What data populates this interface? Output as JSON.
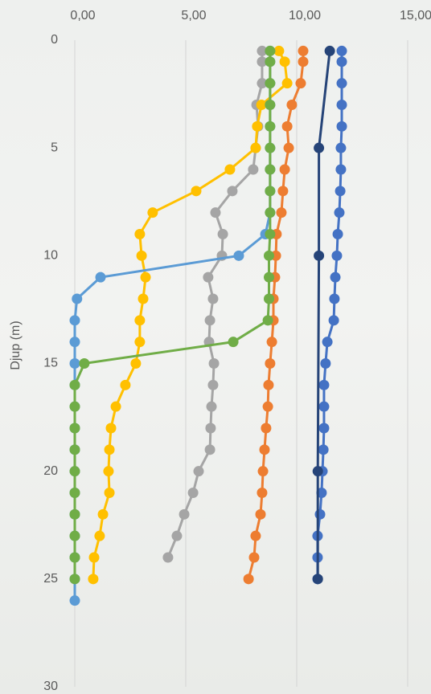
{
  "chart_data": {
    "type": "line",
    "y_label": "Djup (m)",
    "xlim": [
      0,
      15
    ],
    "xticks": [
      {
        "value": 0,
        "label": "0,00"
      },
      {
        "value": 5,
        "label": "5,00"
      },
      {
        "value": 10,
        "label": "10,00"
      },
      {
        "value": 15,
        "label": "15,00"
      }
    ],
    "ylim": [
      0,
      30
    ],
    "yticks": [
      0,
      5,
      10,
      15,
      20,
      25,
      30
    ],
    "y_inverted": true,
    "x_axis_position": "top",
    "grid": true,
    "series": [
      {
        "color": "#4472c4",
        "y": [
          0.5,
          1,
          2,
          3,
          4,
          5,
          6,
          7,
          8,
          9,
          10,
          11,
          12,
          13,
          14,
          15,
          16,
          17,
          18,
          19,
          20,
          21,
          22,
          23,
          24,
          25
        ],
        "values": [
          12.03,
          12.03,
          12.03,
          12.03,
          12.03,
          11.99,
          11.99,
          11.96,
          11.92,
          11.85,
          11.81,
          11.74,
          11.7,
          11.67,
          11.38,
          11.3,
          11.23,
          11.23,
          11.23,
          11.2,
          11.16,
          11.12,
          11.05,
          10.94,
          10.94,
          10.94
        ]
      },
      {
        "color": "#ed7d31",
        "y": [
          0.5,
          1,
          2,
          3,
          4,
          5,
          6,
          7,
          8,
          9,
          10,
          11,
          12,
          13,
          14,
          15,
          16,
          17,
          18,
          19,
          20,
          21,
          22,
          23,
          24,
          25
        ],
        "values": [
          10.29,
          10.29,
          10.18,
          9.78,
          9.57,
          9.64,
          9.46,
          9.38,
          9.31,
          9.09,
          9.06,
          9.02,
          8.95,
          8.95,
          8.88,
          8.8,
          8.73,
          8.7,
          8.62,
          8.55,
          8.48,
          8.44,
          8.37,
          8.15,
          8.08,
          7.83
        ]
      },
      {
        "color": "#a5a5a5",
        "y": [
          0.5,
          1,
          2,
          3,
          4,
          5,
          6,
          7,
          8,
          9,
          10,
          11,
          12,
          13,
          14,
          15,
          16,
          17,
          18,
          19,
          20,
          21,
          22,
          23,
          24
        ],
        "values": [
          8.44,
          8.44,
          8.44,
          8.19,
          8.26,
          8.15,
          8.04,
          7.1,
          6.34,
          6.67,
          6.63,
          6.01,
          6.23,
          6.09,
          6.05,
          6.27,
          6.23,
          6.16,
          6.12,
          6.09,
          5.58,
          5.33,
          4.93,
          4.6,
          4.2
        ]
      },
      {
        "color": "#ffc000",
        "y": [
          0.5,
          1,
          2,
          3,
          4,
          5,
          6,
          7,
          8,
          9,
          10,
          11,
          12,
          13,
          14,
          15,
          16,
          17,
          18,
          19,
          20,
          21,
          22,
          23,
          24,
          25
        ],
        "values": [
          9.2,
          9.46,
          9.57,
          8.41,
          8.22,
          8.15,
          6.99,
          5.47,
          3.51,
          2.93,
          3.01,
          3.19,
          3.08,
          2.93,
          2.93,
          2.75,
          2.28,
          1.85,
          1.63,
          1.56,
          1.52,
          1.56,
          1.27,
          1.12,
          0.87,
          0.83
        ]
      },
      {
        "color": "#5b9bd5",
        "y": [
          0.5,
          1,
          2,
          3,
          4,
          5,
          6,
          7,
          8,
          9,
          10,
          11,
          12,
          13,
          14,
          15,
          16,
          17,
          18,
          19,
          20,
          21,
          22,
          23,
          24,
          25,
          26
        ],
        "values": [
          8.8,
          8.8,
          8.8,
          8.8,
          8.8,
          8.8,
          8.8,
          8.8,
          8.8,
          8.59,
          7.39,
          1.16,
          0.1,
          0,
          0,
          0,
          0,
          0,
          0,
          0,
          0,
          0,
          0,
          0,
          0,
          0,
          0
        ]
      },
      {
        "color": "#70ad47",
        "y": [
          0.5,
          1,
          2,
          3,
          4,
          5,
          6,
          7,
          8,
          9,
          10,
          11,
          12,
          13,
          14,
          15,
          16,
          17,
          18,
          19,
          20,
          21,
          22,
          23,
          24,
          25
        ],
        "values": [
          8.8,
          8.8,
          8.8,
          8.8,
          8.8,
          8.8,
          8.8,
          8.8,
          8.8,
          8.8,
          8.75,
          8.75,
          8.75,
          8.7,
          7.14,
          0.43,
          0,
          0,
          0,
          0,
          0,
          0,
          0,
          0,
          0,
          0
        ]
      },
      {
        "color": "#264478",
        "y": [
          0.5,
          5,
          10,
          20,
          25
        ],
        "values": [
          11.49,
          11.0,
          11.0,
          10.95,
          10.95
        ]
      }
    ]
  }
}
